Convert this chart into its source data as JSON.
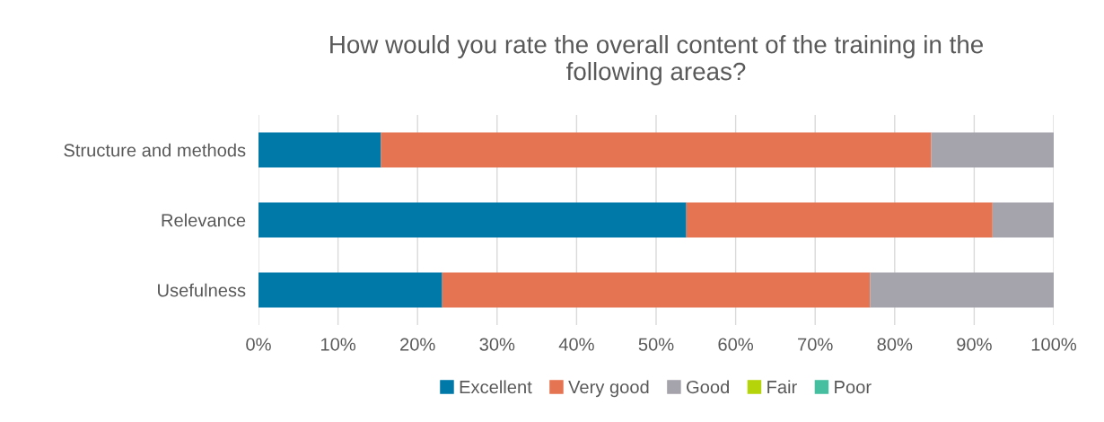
{
  "chart_data": {
    "type": "bar",
    "orientation": "horizontal",
    "stacked": true,
    "title": "How would you rate the overall content of the training in the\nfollowing areas?",
    "categories": [
      "Structure and methods",
      "Relevance",
      "Usefulness"
    ],
    "series": [
      {
        "name": "Excellent",
        "color": "#0079a9",
        "values": [
          15.4,
          53.8,
          23.1
        ]
      },
      {
        "name": "Very good",
        "color": "#e57452",
        "values": [
          69.2,
          38.5,
          53.8
        ]
      },
      {
        "name": "Good",
        "color": "#a5a3ab",
        "values": [
          15.4,
          7.7,
          23.1
        ]
      },
      {
        "name": "Fair",
        "color": "#b5d40a",
        "values": [
          0,
          0,
          0
        ]
      },
      {
        "name": "Poor",
        "color": "#45bfa0",
        "values": [
          0,
          0,
          0
        ]
      }
    ],
    "xlim": [
      0,
      100
    ],
    "xticks": [
      {
        "value": 0,
        "label": "0%"
      },
      {
        "value": 10,
        "label": "10%"
      },
      {
        "value": 20,
        "label": "20%"
      },
      {
        "value": 30,
        "label": "30%"
      },
      {
        "value": 40,
        "label": "40%"
      },
      {
        "value": 50,
        "label": "50%"
      },
      {
        "value": 60,
        "label": "60%"
      },
      {
        "value": 70,
        "label": "70%"
      },
      {
        "value": 80,
        "label": "80%"
      },
      {
        "value": 90,
        "label": "90%"
      },
      {
        "value": 100,
        "label": "100%"
      }
    ],
    "grid": "x",
    "legend": "bottom"
  }
}
